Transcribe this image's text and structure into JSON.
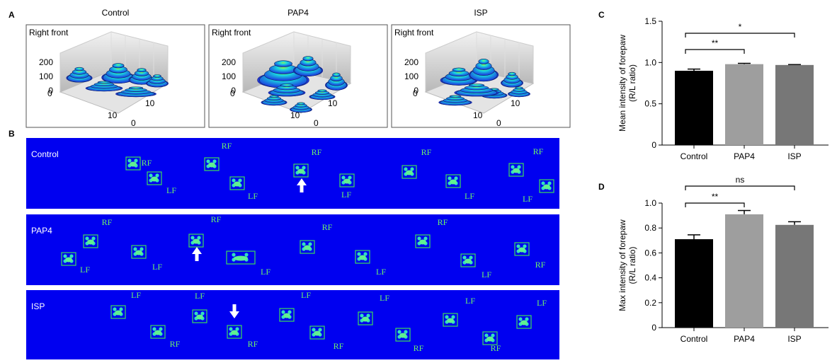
{
  "panel_a": {
    "panel_label": "A",
    "plots": [
      {
        "title": "Control",
        "subtitle": "Right front"
      },
      {
        "title": "PAP4",
        "subtitle": "Right front"
      },
      {
        "title": "ISP",
        "subtitle": "Right front"
      }
    ],
    "z_ticks": [
      200,
      100,
      0
    ],
    "front_ticks": [
      10,
      0
    ],
    "side_ticks": [
      10,
      0
    ]
  },
  "panel_b": {
    "panel_label": "B",
    "rows": [
      {
        "label": "Control",
        "paw_labels": [
          "RF",
          "LF",
          "RF",
          "LF",
          "RF",
          "LF",
          "RF",
          "LF",
          "RF",
          "LF"
        ]
      },
      {
        "label": "PAP4",
        "paw_labels": [
          "RF",
          "LF",
          "LF",
          "RF",
          "LF",
          "RF",
          "LF",
          "RF",
          "LF",
          "RF"
        ]
      },
      {
        "label": "ISP",
        "paw_labels": [
          "LF",
          "RF",
          "LF",
          "RF",
          "LF",
          "RF",
          "LF",
          "RF",
          "LF",
          "RF",
          "LF"
        ]
      }
    ]
  },
  "chart_data": [
    {
      "type": "bar",
      "panel_label": "C",
      "ylabel": [
        "Mean intensity of forepaw",
        "(R/L ratio)"
      ],
      "categories": [
        "Control",
        "PAP4",
        "ISP"
      ],
      "values": [
        0.9,
        0.98,
        0.97
      ],
      "errors": [
        0.02,
        0.01,
        0.005
      ],
      "colors": [
        "#000000",
        "#9e9e9e",
        "#777777"
      ],
      "ylim": [
        0,
        1.5
      ],
      "yticks": [
        0,
        0.5,
        {
          "value": 1,
          "label": "1.0"
        },
        1.5
      ],
      "annotations": [
        "**",
        "*"
      ]
    },
    {
      "type": "bar",
      "panel_label": "D",
      "ylabel": [
        "Max intensity of forepaw",
        "(R/L ratio)"
      ],
      "categories": [
        "Control",
        "PAP4",
        "ISP"
      ],
      "values": [
        0.71,
        0.91,
        0.825
      ],
      "errors": [
        0.035,
        0.03,
        0.025
      ],
      "colors": [
        "#000000",
        "#9e9e9e",
        "#777777"
      ],
      "ylim": [
        0,
        1.0
      ],
      "yticks": [
        0,
        0.2,
        0.4,
        0.6,
        0.8,
        {
          "value": 1,
          "label": "1.0"
        }
      ],
      "annotations": [
        "**",
        "ns"
      ]
    }
  ]
}
